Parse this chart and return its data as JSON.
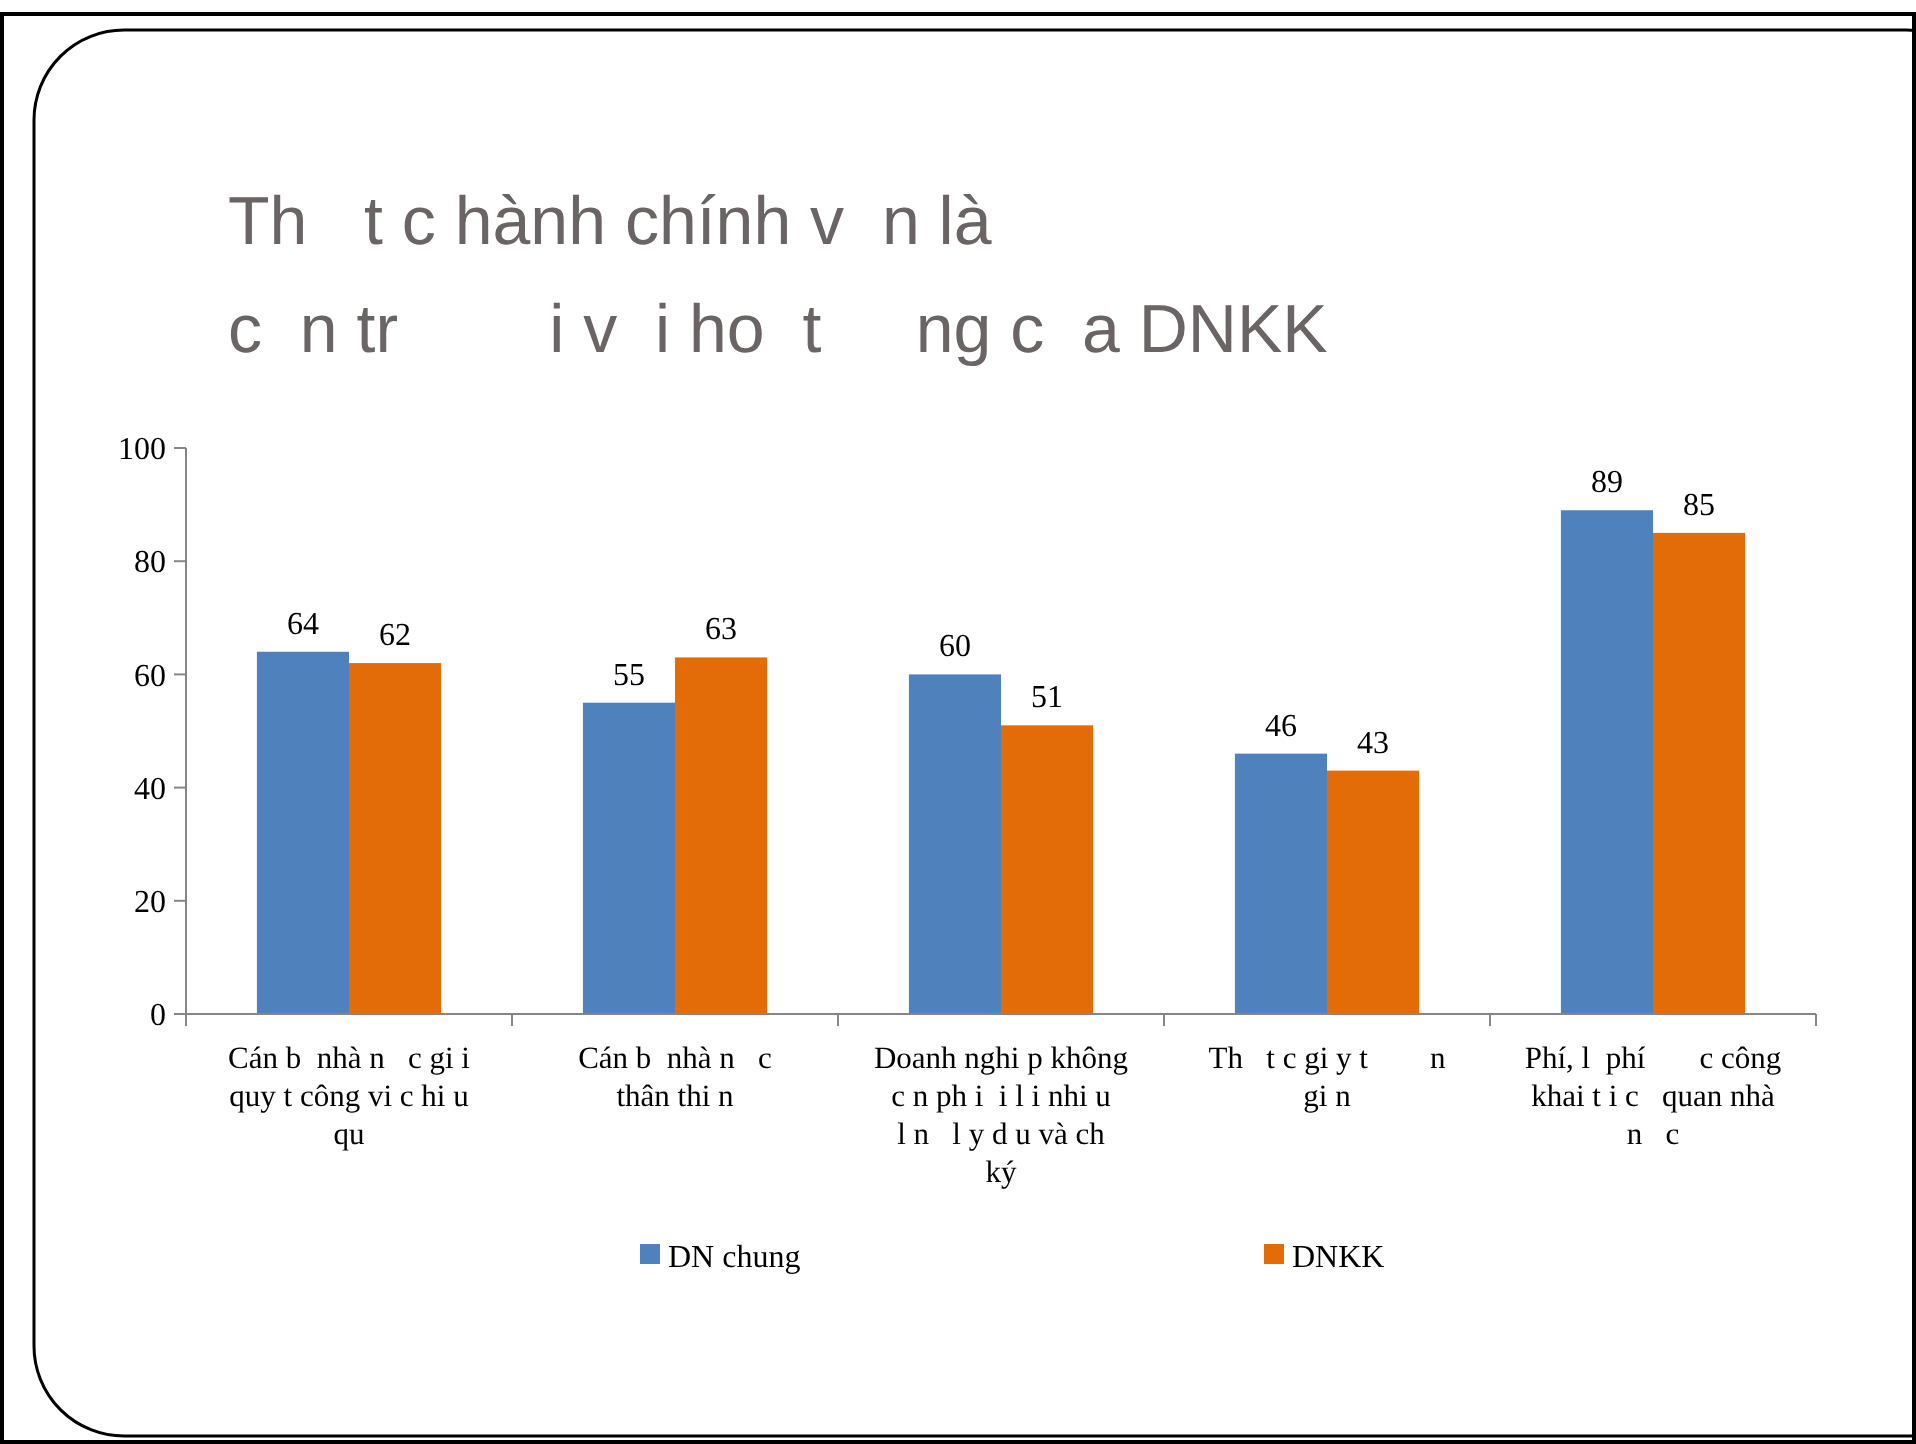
{
  "chart_data": {
    "type": "bar",
    "title": "Th   t c hành chính v  n là\nc  n tr        i v  i ho  t     ng c  a DNKK",
    "categories": [
      "Cán b  nhà n   c gi i\nquy t công vi c hi u\nqu",
      "Cán b  nhà n   c\nthân thi n",
      "Doanh nghi p không\nc n ph i  i l i nhi u\nl n   l y d u và ch\nký",
      "Th   t c gi y t        n\ngi n",
      "Phí, l  phí       c công\nkhai t i c   quan nhà\nn   c"
    ],
    "series": [
      {
        "name": "DN chung",
        "color": "#4f81bd",
        "values": [
          64,
          55,
          60,
          46,
          89
        ]
      },
      {
        "name": "DNKK",
        "color": "#e36c09",
        "values": [
          62,
          63,
          51,
          43,
          85
        ]
      }
    ],
    "ylim": [
      0,
      100
    ],
    "yticks": [
      0,
      20,
      40,
      60,
      80,
      100
    ],
    "data_labels": true,
    "legend": "bottom",
    "grid": false
  }
}
